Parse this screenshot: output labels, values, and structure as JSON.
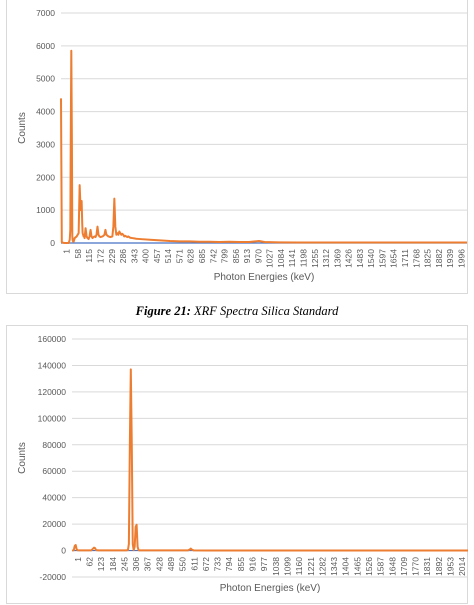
{
  "caption": {
    "label": "Figure 21:",
    "text": "XRF Spectra Silica Standard"
  },
  "colors": {
    "series": "#ed7d31",
    "series2": "#4472c4",
    "grid": "#d9d9d9",
    "axis_text": "#595959"
  },
  "chart_data": [
    {
      "type": "line",
      "title": "",
      "xlabel": "Photon Energies (keV)",
      "ylabel": "Counts",
      "ylim": [
        0,
        7000
      ],
      "yticks": [
        0,
        1000,
        2000,
        3000,
        4000,
        5000,
        6000,
        7000
      ],
      "x_range": [
        1,
        2048
      ],
      "xtick_labels": [
        "1",
        "58",
        "115",
        "172",
        "229",
        "286",
        "343",
        "400",
        "457",
        "514",
        "571",
        "628",
        "685",
        "742",
        "799",
        "856",
        "913",
        "970",
        "1027",
        "1084",
        "1141",
        "1198",
        "1255",
        "1312",
        "1369",
        "1426",
        "1483",
        "1540",
        "1597",
        "1654",
        "1711",
        "1768",
        "1825",
        "1882",
        "1939",
        "1996"
      ],
      "grid": true,
      "legend": "none",
      "series": [
        {
          "x": [
            1,
            5,
            10,
            15,
            20,
            25,
            30,
            40,
            45,
            48,
            50,
            53,
            56,
            58,
            60,
            62,
            64,
            66,
            70,
            80,
            90,
            95,
            100,
            105,
            108,
            110,
            115,
            118,
            120,
            125,
            130,
            135,
            140,
            145,
            150,
            155,
            160,
            165,
            170,
            175,
            180,
            185,
            190,
            195,
            200,
            210,
            215,
            220,
            225,
            230,
            240,
            250,
            260,
            265,
            270,
            275,
            280,
            285,
            290,
            295,
            300,
            305,
            310,
            315,
            320,
            325,
            330,
            335,
            340,
            345,
            350,
            360,
            370,
            380,
            400,
            450,
            500,
            550,
            600,
            650,
            700,
            750,
            800,
            850,
            900,
            950,
            1000,
            1027,
            1050,
            1100,
            1200,
            1300,
            1400,
            1500,
            1600,
            1700,
            1800,
            1900,
            2000,
            2048
          ],
          "y": [
            4400,
            30,
            10,
            5,
            0,
            0,
            0,
            0,
            100,
            400,
            3000,
            5850,
            3000,
            200,
            80,
            50,
            40,
            60,
            150,
            200,
            300,
            1760,
            1000,
            1280,
            600,
            300,
            200,
            250,
            150,
            450,
            200,
            150,
            120,
            200,
            400,
            200,
            150,
            180,
            200,
            180,
            250,
            500,
            250,
            200,
            180,
            200,
            220,
            250,
            400,
            250,
            200,
            180,
            200,
            500,
            1350,
            500,
            250,
            300,
            250,
            350,
            300,
            250,
            280,
            250,
            200,
            220,
            200,
            180,
            200,
            180,
            160,
            150,
            140,
            130,
            120,
            100,
            80,
            60,
            50,
            50,
            40,
            40,
            30,
            40,
            30,
            30,
            60,
            30,
            25,
            20,
            15,
            15,
            15,
            15,
            15,
            15,
            15,
            15,
            15,
            15
          ]
        }
      ]
    },
    {
      "type": "line",
      "title": "",
      "xlabel": "Photon Energies (keV)",
      "ylabel": "Counts",
      "ylim": [
        -20000,
        160000
      ],
      "yticks": [
        -20000,
        0,
        20000,
        40000,
        60000,
        80000,
        100000,
        120000,
        140000,
        160000
      ],
      "x_range": [
        1,
        2048
      ],
      "xtick_labels": [
        "1",
        "62",
        "123",
        "184",
        "245",
        "306",
        "367",
        "428",
        "489",
        "550",
        "611",
        "672",
        "733",
        "794",
        "855",
        "916",
        "977",
        "1038",
        "1099",
        "1160",
        "1221",
        "1282",
        "1343",
        "1404",
        "1465",
        "1526",
        "1587",
        "1648",
        "1709",
        "1770",
        "1831",
        "1892",
        "1953",
        "2014"
      ],
      "grid": true,
      "legend": "none",
      "series": [
        {
          "x": [
            1,
            10,
            15,
            20,
            25,
            30,
            40,
            60,
            100,
            110,
            115,
            120,
            125,
            130,
            140,
            200,
            280,
            290,
            295,
            300,
            305,
            310,
            315,
            320,
            325,
            330,
            335,
            340,
            345,
            350,
            360,
            400,
            500,
            600,
            610,
            615,
            620,
            630,
            700,
            800,
            900,
            1000,
            1100,
            1200,
            1300,
            1400,
            1500,
            1600,
            1700,
            1800,
            1900,
            2000,
            2048
          ],
          "y": [
            0,
            200,
            3500,
            4200,
            1000,
            200,
            100,
            100,
            100,
            1500,
            2200,
            1800,
            500,
            200,
            100,
            100,
            100,
            300,
            5000,
            80000,
            137000,
            80000,
            5000,
            300,
            3000,
            18000,
            19500,
            3000,
            300,
            100,
            100,
            100,
            100,
            100,
            800,
            1500,
            800,
            100,
            50,
            50,
            50,
            50,
            50,
            50,
            50,
            50,
            50,
            50,
            50,
            50,
            50,
            50,
            50
          ]
        }
      ]
    }
  ]
}
